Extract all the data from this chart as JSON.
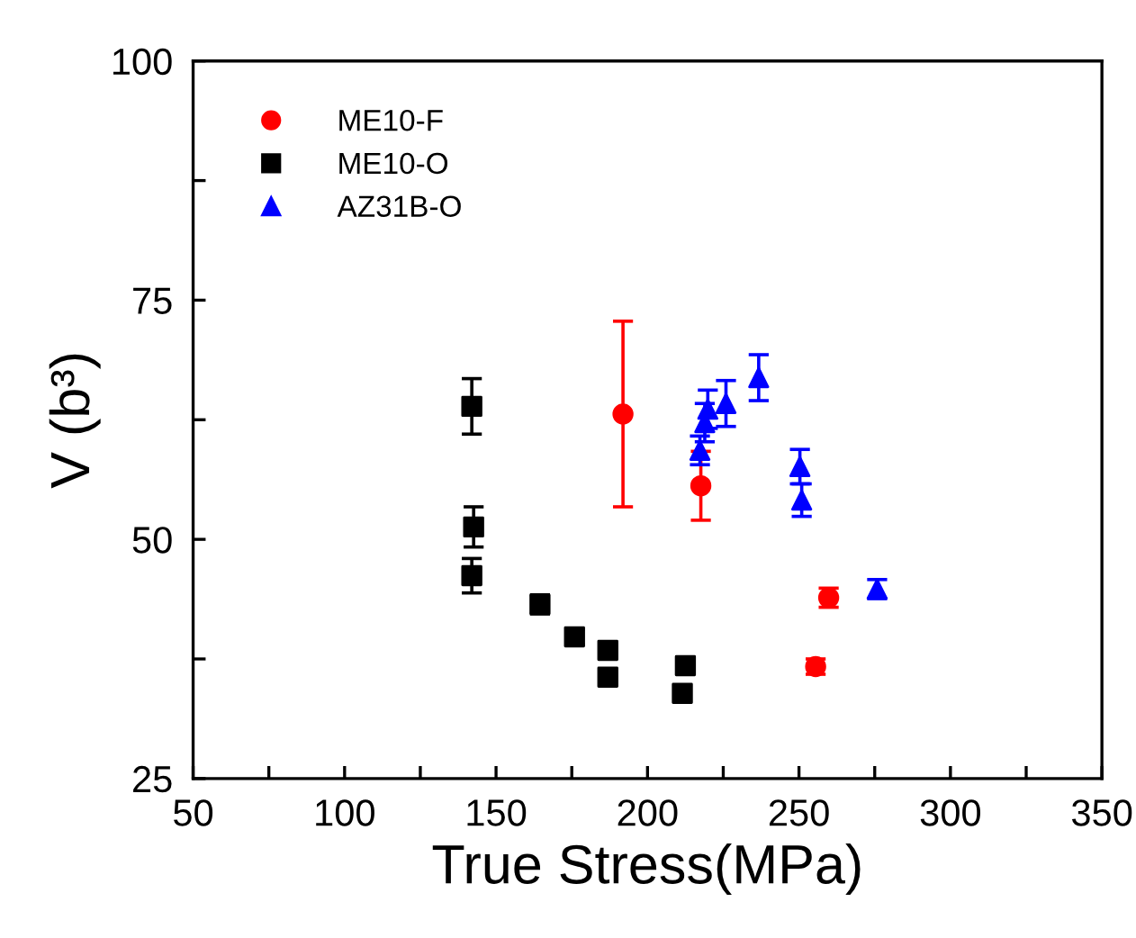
{
  "chart_data": {
    "type": "scatter",
    "xlabel": "True Stress(MPa)",
    "ylabel": "V (b³)",
    "xlim": [
      50,
      350
    ],
    "ylim": [
      25,
      100
    ],
    "xticks": [
      50,
      {
        "value": 75,
        "label": null
      },
      100,
      {
        "value": 125,
        "label": null
      },
      150,
      {
        "value": 175,
        "label": null
      },
      200,
      {
        "value": 225,
        "label": null
      },
      250,
      {
        "value": 275,
        "label": null
      },
      300,
      {
        "value": 325,
        "label": null
      },
      350
    ],
    "yticks": [
      25,
      {
        "value": 37.5,
        "label": null
      },
      50,
      {
        "value": 62.5,
        "label": null
      },
      75,
      {
        "value": 87.5,
        "label": null
      },
      100
    ],
    "grid": false,
    "legend": "top left",
    "series": [
      {
        "name": "ME10-F",
        "color": "#ff0000",
        "marker": "circle",
        "x": [
          191.9,
          217.6,
          259.8,
          255.5
        ],
        "values": [
          63.1,
          55.6,
          43.9,
          36.7
        ],
        "errors": [
          9.7,
          3.6,
          1,
          0.8
        ]
      },
      {
        "name": "ME10-O",
        "color": "#000000",
        "marker": "square",
        "x": [
          142.0,
          142.6,
          142.0,
          164.5,
          175.9,
          186.9,
          186.9,
          212.5,
          211.5
        ],
        "values": [
          63.9,
          51.3,
          46.2,
          43.2,
          39.8,
          38.4,
          35.6,
          36.8,
          33.9
        ],
        "errors": [
          2.9,
          2.1,
          1.8,
          1,
          0.8,
          null,
          null,
          null,
          null
        ]
      },
      {
        "name": "AZ31B-O",
        "color": "#0000ff",
        "marker": "triangle",
        "x": [
          217.3,
          218.9,
          219.9,
          225.9,
          236.7,
          250.3,
          250.9,
          275.8
        ],
        "values": [
          59.3,
          62.2,
          63.6,
          64.2,
          66.9,
          57.6,
          54.1,
          44.8
        ],
        "errors": [
          1.5,
          2,
          2,
          2.4,
          2.4,
          1.8,
          1.7,
          1
        ]
      }
    ]
  }
}
